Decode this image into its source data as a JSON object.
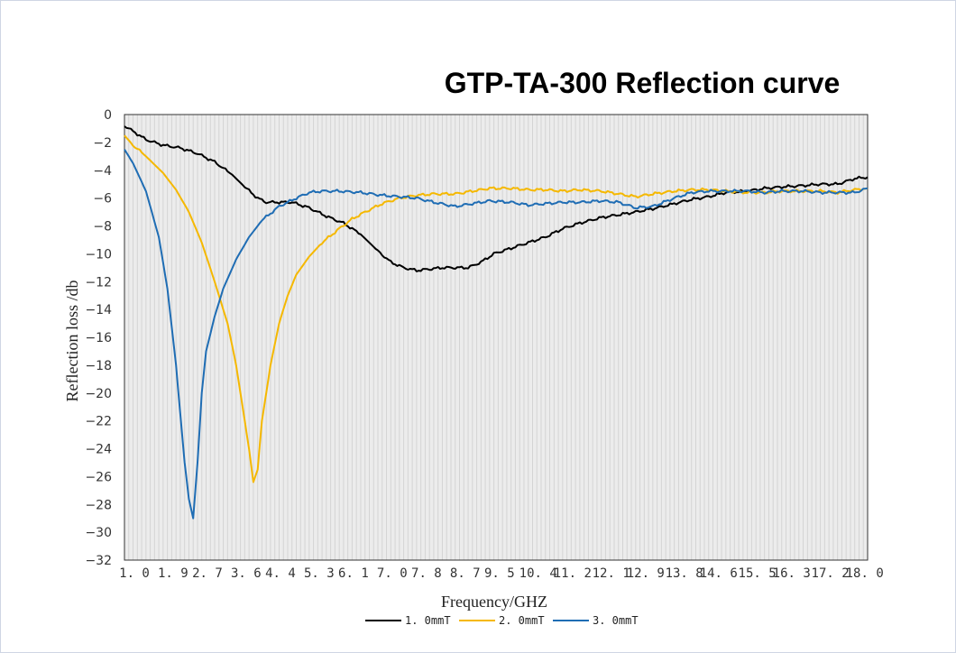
{
  "chart_data": {
    "type": "line",
    "title": "GTP-TA-300 Reflection curve",
    "xlabel": "Frequency/GHZ",
    "ylabel": "Reflection loss /db",
    "xlim": [
      1.0,
      18.3
    ],
    "ylim": [
      -32,
      0
    ],
    "grid": "vertical",
    "x_ticks": [
      1.0,
      1.9,
      2.7,
      3.6,
      4.4,
      5.3,
      6.1,
      7.0,
      7.8,
      8.7,
      9.5,
      10.4,
      11.2,
      12.1,
      12.9,
      13.8,
      14.6,
      15.5,
      16.3,
      17.2,
      18.0
    ],
    "x_tick_labels": [
      "1. 0",
      "1. 9",
      "2. 7",
      "3. 6",
      "4. 4",
      "5. 3",
      "6. 1",
      "7. 0",
      "7. 8",
      "8. 7",
      "9. 5",
      "10. 4",
      "11. 2",
      "12. 1",
      "12. 9",
      "13. 8",
      "14. 6",
      "15. 5",
      "16. 3",
      "17. 2",
      "18. 0"
    ],
    "y_ticks": [
      0,
      -2,
      -4,
      -6,
      -8,
      -10,
      -12,
      -14,
      -16,
      -18,
      -20,
      -22,
      -24,
      -26,
      -28,
      -30,
      -32
    ],
    "y_tick_labels": [
      "0",
      "−2",
      "−4",
      "−6",
      "−8",
      "−10",
      "−12",
      "−14",
      "−16",
      "−18",
      "−20",
      "−22",
      "−24",
      "−26",
      "−28",
      "−30",
      "−32"
    ],
    "legend_position": "bottom",
    "series": [
      {
        "name": "1. 0mmT",
        "color": "#000000",
        "x": [
          1.0,
          1.2,
          1.5,
          1.9,
          2.3,
          2.7,
          3.1,
          3.5,
          3.8,
          4.1,
          4.3,
          4.6,
          4.9,
          5.3,
          5.7,
          6.1,
          6.5,
          6.9,
          7.2,
          7.5,
          7.8,
          8.1,
          8.4,
          8.7,
          9.0,
          9.3,
          9.6,
          10.0,
          10.4,
          10.8,
          11.2,
          11.6,
          12.1,
          12.5,
          12.9,
          13.4,
          13.8,
          14.2,
          14.6,
          15.0,
          15.5,
          15.9,
          16.3,
          16.8,
          17.2,
          17.6,
          18.0,
          18.3
        ],
        "y": [
          -0.8,
          -1.2,
          -1.8,
          -2.2,
          -2.4,
          -2.8,
          -3.4,
          -4.3,
          -5.2,
          -6.0,
          -6.3,
          -6.3,
          -6.3,
          -6.7,
          -7.3,
          -7.8,
          -8.6,
          -9.8,
          -10.6,
          -11.0,
          -11.2,
          -11.1,
          -11.0,
          -11.0,
          -11.0,
          -10.6,
          -10.0,
          -9.6,
          -9.2,
          -8.8,
          -8.2,
          -7.8,
          -7.4,
          -7.2,
          -7.0,
          -6.7,
          -6.4,
          -6.1,
          -5.9,
          -5.6,
          -5.5,
          -5.3,
          -5.2,
          -5.1,
          -5.0,
          -5.0,
          -4.6,
          -4.5
        ]
      },
      {
        "name": "2. 0mmT",
        "color": "#f5b800",
        "x": [
          1.0,
          1.2,
          1.5,
          1.9,
          2.2,
          2.5,
          2.8,
          3.1,
          3.4,
          3.6,
          3.8,
          3.9,
          4.0,
          4.1,
          4.2,
          4.4,
          4.6,
          4.8,
          5.0,
          5.3,
          5.6,
          6.0,
          6.3,
          6.6,
          7.0,
          7.4,
          7.8,
          8.2,
          8.7,
          9.1,
          9.5,
          10.0,
          10.4,
          10.8,
          11.2,
          11.6,
          12.1,
          12.5,
          12.9,
          13.3,
          13.8,
          14.2,
          14.6,
          15.0,
          15.5,
          15.9,
          16.3,
          16.8,
          17.2,
          17.6,
          18.0,
          18.3
        ],
        "y": [
          -1.5,
          -2.2,
          -3.0,
          -4.2,
          -5.4,
          -7.0,
          -9.2,
          -12.0,
          -15.0,
          -18.0,
          -22.0,
          -24.0,
          -26.4,
          -25.5,
          -22.0,
          -18.0,
          -15.0,
          -13.0,
          -11.5,
          -10.2,
          -9.2,
          -8.2,
          -7.5,
          -7.0,
          -6.4,
          -6.0,
          -5.8,
          -5.7,
          -5.7,
          -5.5,
          -5.3,
          -5.3,
          -5.4,
          -5.4,
          -5.5,
          -5.4,
          -5.5,
          -5.7,
          -5.9,
          -5.7,
          -5.5,
          -5.4,
          -5.4,
          -5.5,
          -5.6,
          -5.6,
          -5.5,
          -5.5,
          -5.5,
          -5.6,
          -5.4,
          -5.3
        ]
      },
      {
        "name": "3. 0mmT",
        "color": "#1f6db4",
        "x": [
          1.0,
          1.2,
          1.5,
          1.8,
          2.0,
          2.2,
          2.4,
          2.5,
          2.6,
          2.7,
          2.8,
          2.9,
          3.1,
          3.3,
          3.6,
          3.9,
          4.2,
          4.6,
          5.0,
          5.3,
          5.6,
          6.0,
          6.5,
          7.0,
          7.4,
          7.8,
          8.2,
          8.7,
          9.1,
          9.5,
          10.0,
          10.4,
          10.8,
          11.2,
          11.6,
          12.1,
          12.5,
          12.9,
          13.3,
          13.8,
          14.2,
          14.6,
          15.0,
          15.5,
          15.9,
          16.3,
          16.8,
          17.2,
          17.6,
          18.0,
          18.3
        ],
        "y": [
          -2.5,
          -3.5,
          -5.5,
          -8.8,
          -12.5,
          -18.0,
          -25.0,
          -27.6,
          -29.0,
          -25.0,
          -20.0,
          -17.0,
          -14.5,
          -12.5,
          -10.4,
          -8.8,
          -7.6,
          -6.6,
          -6.0,
          -5.6,
          -5.5,
          -5.5,
          -5.6,
          -5.8,
          -5.9,
          -6.0,
          -6.3,
          -6.6,
          -6.4,
          -6.2,
          -6.3,
          -6.5,
          -6.4,
          -6.3,
          -6.3,
          -6.2,
          -6.3,
          -6.7,
          -6.6,
          -6.0,
          -5.6,
          -5.5,
          -5.5,
          -5.5,
          -5.6,
          -5.5,
          -5.5,
          -5.6,
          -5.6,
          -5.6,
          -5.3
        ]
      }
    ]
  }
}
